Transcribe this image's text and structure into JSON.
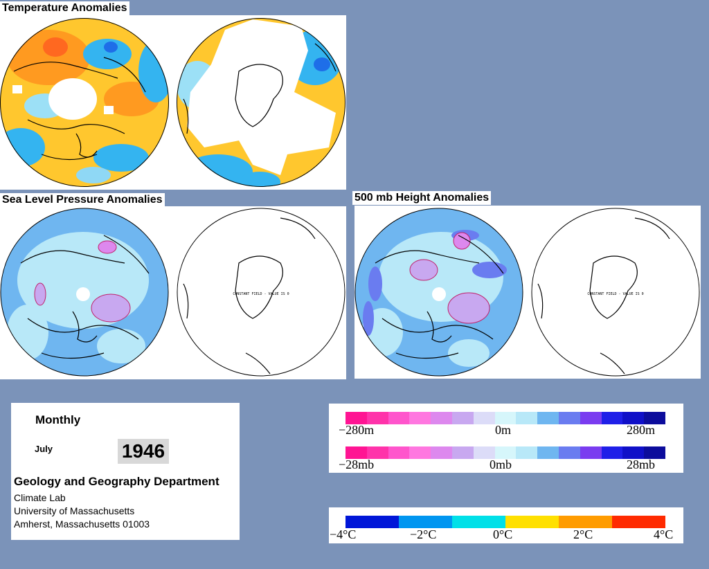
{
  "titles": {
    "temperature": "Temperature Anomalies",
    "slp": "Sea Level Pressure Anomalies",
    "height500": "500 mb Height Anomalies"
  },
  "map_notes": {
    "slp_south": "CONSTANT FIELD - VALUE IS 0",
    "height_south": "CONSTANT FIELD - VALUE IS 0"
  },
  "info": {
    "period": "Monthly",
    "month": "July",
    "year": "1946",
    "department": "Geology and Geography Department",
    "lab": "Climate Lab",
    "university": "University of Massachusetts",
    "address": "Amherst, Massachusetts 01003"
  },
  "legends": {
    "height": {
      "labels": [
        "−280m",
        "0m",
        "280m"
      ]
    },
    "pressure": {
      "labels": [
        "−28mb",
        "0mb",
        "28mb"
      ]
    },
    "temperature": {
      "labels": [
        "−4°C",
        "−2°C",
        "0°C",
        "2°C",
        "4°C"
      ]
    },
    "anomaly_colors": [
      "#ff1493",
      "#ff33aa",
      "#ff55cc",
      "#ff77e0",
      "#dd88ee",
      "#c8a8f0",
      "#dcdcf8",
      "#d6f6fb",
      "#b8e8f8",
      "#6fb6f0",
      "#6a7cf0",
      "#7a3cf0",
      "#1f1fe8",
      "#1010c8",
      "#0c0c9c"
    ],
    "temperature_colors": [
      "#0016d8",
      "#0096f0",
      "#00e0e8",
      "#ffe000",
      "#ff9c00",
      "#ff2a00"
    ]
  }
}
